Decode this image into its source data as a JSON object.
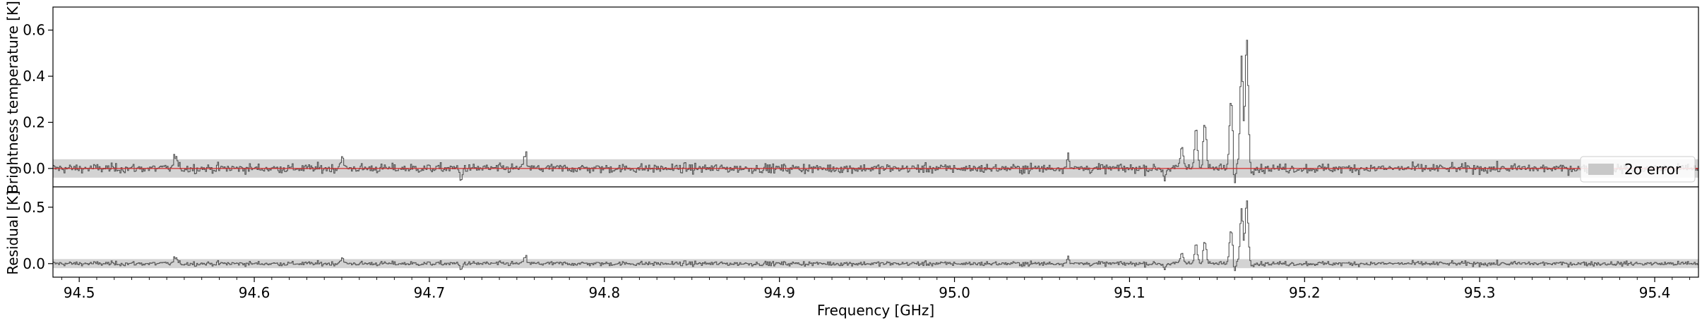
{
  "chart_data": [
    {
      "type": "line",
      "panel": "top",
      "ylabel": "Brightness temperature [K]",
      "xlim": [
        94.485,
        95.425
      ],
      "ylim": [
        -0.08,
        0.7
      ],
      "yticks": [
        0.0,
        0.2,
        0.4,
        0.6
      ],
      "ytick_labels": [
        "0.0",
        "0.2",
        "0.4",
        "0.6"
      ],
      "legend": {
        "location": "right",
        "entries": [
          {
            "label": "2σ error",
            "color": "#c8c8c8"
          }
        ]
      },
      "error_band": {
        "lower": -0.04,
        "upper": 0.04,
        "color": "#d3d3d3"
      },
      "series": [
        {
          "style": "step",
          "color": "#555555",
          "noise_sigma": 0.014,
          "peaks": [
            {
              "x": 95.13,
              "y": 0.09
            },
            {
              "x": 95.138,
              "y": 0.17
            },
            {
              "x": 95.143,
              "y": 0.21
            },
            {
              "x": 95.158,
              "y": 0.3
            },
            {
              "x": 95.164,
              "y": 0.48
            },
            {
              "x": 95.167,
              "y": 0.56
            },
            {
              "x": 94.555,
              "y": 0.06
            },
            {
              "x": 94.65,
              "y": 0.05
            },
            {
              "x": 94.755,
              "y": 0.06
            },
            {
              "x": 95.065,
              "y": 0.06
            }
          ],
          "dips": [
            {
              "x": 94.718,
              "y": -0.06
            },
            {
              "x": 95.12,
              "y": -0.05
            },
            {
              "x": 95.16,
              "y": -0.07
            }
          ]
        },
        {
          "style": "line",
          "color": "#d62728",
          "y_const": 0.0
        }
      ]
    },
    {
      "type": "line",
      "panel": "bottom",
      "ylabel": "Residual [K]",
      "xlabel": "Frequency [GHz]",
      "xlim": [
        94.485,
        95.425
      ],
      "ylim": [
        -0.12,
        0.68
      ],
      "yticks": [
        0.0,
        0.5
      ],
      "ytick_labels": [
        "0.0",
        "0.5"
      ],
      "xticks": [
        94.5,
        94.6,
        94.7,
        94.8,
        94.9,
        95.0,
        95.1,
        95.2,
        95.3,
        95.4
      ],
      "xtick_labels": [
        "94.5",
        "94.6",
        "94.7",
        "94.8",
        "94.9",
        "95.0",
        "95.1",
        "95.2",
        "95.3",
        "95.4"
      ],
      "error_band": {
        "lower": -0.04,
        "upper": 0.04,
        "color": "#d3d3d3"
      },
      "series": [
        {
          "style": "step",
          "color": "#555555",
          "note_same_as_top_residual": true
        }
      ]
    }
  ]
}
